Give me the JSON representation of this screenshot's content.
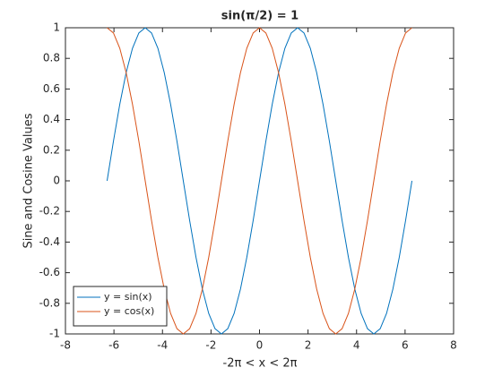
{
  "chart_data": {
    "type": "line",
    "title": "sin(π/2) = 1",
    "x_label": "-2π < x < 2π",
    "y_label": "Sine and Cosine Values",
    "x": [
      -6.283,
      -6.021,
      -5.76,
      -5.498,
      -5.236,
      -4.974,
      -4.712,
      -4.451,
      -4.189,
      -3.927,
      -3.665,
      -3.403,
      -3.142,
      -2.88,
      -2.618,
      -2.356,
      -2.094,
      -1.833,
      -1.571,
      -1.309,
      -1.047,
      -0.785,
      -0.524,
      -0.262,
      0,
      0.262,
      0.524,
      0.785,
      1.047,
      1.309,
      1.571,
      1.833,
      2.094,
      2.356,
      2.618,
      2.88,
      3.142,
      3.403,
      3.665,
      3.927,
      4.189,
      4.451,
      4.712,
      4.974,
      5.236,
      5.498,
      5.76,
      6.021,
      6.283
    ],
    "series": [
      {
        "name": "y = sin(x)",
        "color": "#0072bd",
        "values": [
          0,
          0.259,
          0.5,
          0.707,
          0.866,
          0.966,
          1,
          0.966,
          0.866,
          0.707,
          0.5,
          0.259,
          0,
          -0.259,
          -0.5,
          -0.707,
          -0.866,
          -0.966,
          -1,
          -0.966,
          -0.866,
          -0.707,
          -0.5,
          -0.259,
          0,
          0.259,
          0.5,
          0.707,
          0.866,
          0.966,
          1,
          0.966,
          0.866,
          0.707,
          0.5,
          0.259,
          0,
          -0.259,
          -0.5,
          -0.707,
          -0.866,
          -0.966,
          -1,
          -0.966,
          -0.866,
          -0.707,
          -0.5,
          -0.259,
          0
        ]
      },
      {
        "name": "y = cos(x)",
        "color": "#d95319",
        "values": [
          1,
          0.966,
          0.866,
          0.707,
          0.5,
          0.259,
          0,
          -0.259,
          -0.5,
          -0.707,
          -0.866,
          -0.966,
          -1,
          -0.966,
          -0.866,
          -0.707,
          -0.5,
          -0.259,
          0,
          0.259,
          0.5,
          0.707,
          0.866,
          0.966,
          1,
          0.966,
          0.866,
          0.707,
          0.5,
          0.259,
          0,
          -0.259,
          -0.5,
          -0.707,
          -0.866,
          -0.966,
          -1,
          -0.966,
          -0.866,
          -0.707,
          -0.5,
          -0.259,
          0,
          0.259,
          0.5,
          0.707,
          0.866,
          0.966,
          1
        ]
      }
    ],
    "xlim": [
      -8,
      8
    ],
    "xticks": [
      -8,
      -6,
      -4,
      -2,
      0,
      2,
      4,
      6,
      8
    ],
    "ylim": [
      -1,
      1
    ],
    "yticks": [
      -1,
      -0.8,
      -0.6,
      -0.4,
      -0.2,
      0,
      0.2,
      0.4,
      0.6,
      0.8,
      1
    ],
    "grid": false,
    "legend_position": "southwest"
  }
}
